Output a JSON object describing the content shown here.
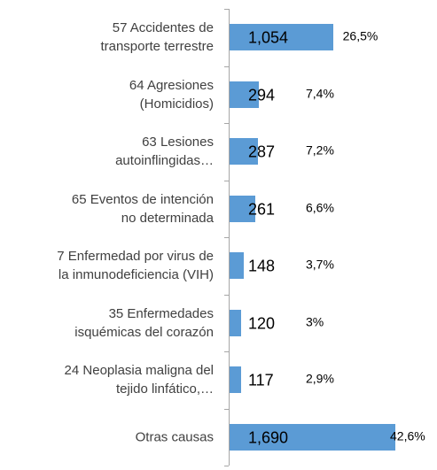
{
  "chart_data": {
    "type": "bar",
    "orientation": "horizontal",
    "color": "#5b9bd5",
    "categories": [
      "57 Accidentes de\ntransporte terrestre",
      "64 Agresiones\n(Homicidios)",
      "63 Lesiones\nautoinflingidas…",
      "65 Eventos de intención\nno determinada",
      "7 Enfermedad por virus de\nla inmunodeficiencia (VIH)",
      "35 Enfermedades\nisquémicas del corazón",
      "24 Neoplasia maligna del\ntejido linfático,…",
      "Otras causas"
    ],
    "values": [
      1054,
      294,
      287,
      261,
      148,
      120,
      117,
      1690
    ],
    "value_labels": [
      "1,054",
      "294",
      "287",
      "261",
      "148",
      "120",
      "117",
      "1,690"
    ],
    "percentages": [
      26.5,
      7.4,
      7.2,
      6.6,
      3.7,
      3,
      2.9,
      42.6
    ],
    "percentage_labels": [
      "26,5%",
      "7,4%",
      "7,2%",
      "6,6%",
      "3,7%",
      "3%",
      "2,9%",
      "42,6%"
    ]
  }
}
